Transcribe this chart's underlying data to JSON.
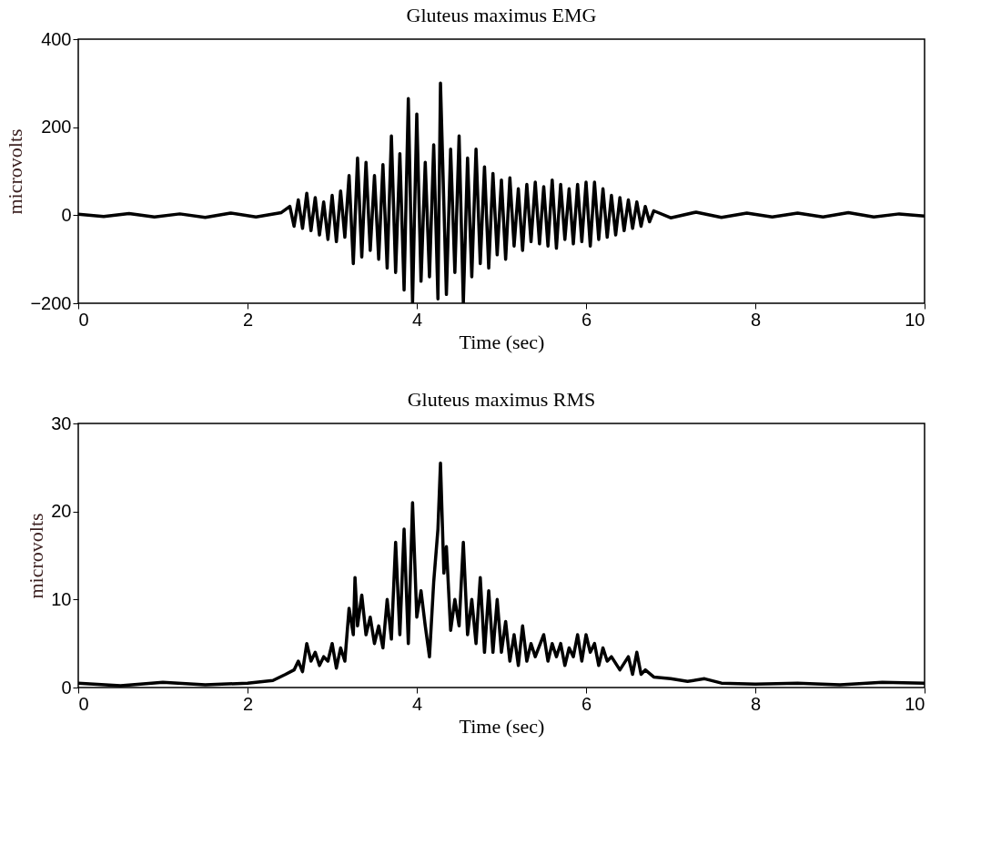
{
  "chart_data": [
    {
      "type": "line",
      "title": "Gluteus maximus EMG",
      "xlabel": "Time (sec)",
      "ylabel": "microvolts",
      "xlim": [
        0,
        10
      ],
      "xticks": [
        0,
        2,
        4,
        6,
        8,
        10
      ],
      "ylim": [
        -200,
        400
      ],
      "yticks": [
        -200,
        0,
        200,
        400
      ],
      "grid": false,
      "marker": "none",
      "line_style": "solid",
      "series": [
        {
          "color": "#000000",
          "x": [
            0,
            0.3,
            0.6,
            0.9,
            1.2,
            1.5,
            1.8,
            2.1,
            2.4,
            2.5,
            2.55,
            2.6,
            2.65,
            2.7,
            2.75,
            2.8,
            2.85,
            2.9,
            2.95,
            3.0,
            3.05,
            3.1,
            3.15,
            3.2,
            3.25,
            3.3,
            3.35,
            3.4,
            3.45,
            3.5,
            3.55,
            3.6,
            3.65,
            3.7,
            3.75,
            3.8,
            3.85,
            3.9,
            3.95,
            4.0,
            4.05,
            4.1,
            4.15,
            4.2,
            4.25,
            4.28,
            4.35,
            4.4,
            4.45,
            4.5,
            4.55,
            4.6,
            4.65,
            4.7,
            4.75,
            4.8,
            4.85,
            4.9,
            4.95,
            5.0,
            5.05,
            5.1,
            5.15,
            5.2,
            5.25,
            5.3,
            5.35,
            5.4,
            5.45,
            5.5,
            5.55,
            5.6,
            5.65,
            5.7,
            5.75,
            5.8,
            5.85,
            5.9,
            5.95,
            6.0,
            6.05,
            6.1,
            6.15,
            6.2,
            6.25,
            6.3,
            6.35,
            6.4,
            6.45,
            6.5,
            6.55,
            6.6,
            6.65,
            6.7,
            6.75,
            6.8,
            7.0,
            7.3,
            7.6,
            7.9,
            8.2,
            8.5,
            8.8,
            9.1,
            9.4,
            9.7,
            10
          ],
          "values": [
            2,
            -3,
            4,
            -4,
            3,
            -5,
            5,
            -4,
            6,
            20,
            -25,
            35,
            -30,
            50,
            -35,
            40,
            -45,
            30,
            -55,
            45,
            -60,
            55,
            -50,
            90,
            -110,
            130,
            -95,
            120,
            -80,
            90,
            -100,
            115,
            -120,
            180,
            -130,
            140,
            -170,
            265,
            -200,
            230,
            -150,
            120,
            -140,
            160,
            -190,
            300,
            -180,
            150,
            -130,
            180,
            -200,
            130,
            -140,
            150,
            -110,
            110,
            -120,
            95,
            -90,
            80,
            -100,
            85,
            -70,
            60,
            -80,
            70,
            -60,
            75,
            -65,
            65,
            -70,
            80,
            -75,
            70,
            -55,
            60,
            -65,
            70,
            -60,
            75,
            -70,
            75,
            -55,
            60,
            -50,
            45,
            -45,
            40,
            -35,
            35,
            -30,
            30,
            -25,
            20,
            -15,
            10,
            -6,
            7,
            -5,
            5,
            -4,
            5,
            -4,
            6,
            -4,
            3,
            -2
          ]
        }
      ]
    },
    {
      "type": "line",
      "title": "Gluteus maximus RMS",
      "xlabel": "Time (sec)",
      "ylabel": "microvolts",
      "xlim": [
        0,
        10
      ],
      "xticks": [
        0,
        2,
        4,
        6,
        8,
        10
      ],
      "ylim": [
        0,
        30
      ],
      "yticks": [
        0,
        10,
        20,
        30
      ],
      "grid": false,
      "marker": "none",
      "line_style": "solid",
      "series": [
        {
          "color": "#000000",
          "x": [
            0,
            0.5,
            1,
            1.5,
            2,
            2.3,
            2.45,
            2.55,
            2.6,
            2.65,
            2.7,
            2.75,
            2.8,
            2.85,
            2.9,
            2.95,
            3.0,
            3.05,
            3.1,
            3.15,
            3.2,
            3.25,
            3.27,
            3.3,
            3.35,
            3.4,
            3.45,
            3.5,
            3.55,
            3.6,
            3.65,
            3.7,
            3.75,
            3.8,
            3.85,
            3.9,
            3.95,
            4.0,
            4.05,
            4.1,
            4.15,
            4.2,
            4.25,
            4.28,
            4.32,
            4.35,
            4.4,
            4.45,
            4.5,
            4.55,
            4.6,
            4.65,
            4.7,
            4.75,
            4.8,
            4.85,
            4.9,
            4.95,
            5.0,
            5.05,
            5.1,
            5.15,
            5.2,
            5.25,
            5.3,
            5.35,
            5.4,
            5.5,
            5.55,
            5.6,
            5.65,
            5.7,
            5.75,
            5.8,
            5.85,
            5.9,
            5.95,
            6.0,
            6.05,
            6.1,
            6.15,
            6.2,
            6.25,
            6.3,
            6.4,
            6.5,
            6.55,
            6.6,
            6.65,
            6.7,
            6.8,
            7.0,
            7.2,
            7.4,
            7.6,
            8,
            8.5,
            9,
            9.5,
            10
          ],
          "values": [
            0.5,
            0.2,
            0.6,
            0.3,
            0.5,
            0.8,
            1.5,
            2,
            3,
            1.8,
            5,
            3,
            4,
            2.5,
            3.5,
            3,
            5,
            2.2,
            4.5,
            3,
            9,
            6,
            12.5,
            7,
            10.5,
            6,
            8,
            5,
            7,
            4.5,
            10,
            5.5,
            16.5,
            6,
            18,
            5,
            21,
            8,
            11,
            7,
            3.5,
            12,
            18,
            25.5,
            13,
            16,
            6.5,
            10,
            7,
            16.5,
            6,
            10,
            5,
            12.5,
            4,
            11,
            4,
            10,
            4,
            7.5,
            3,
            6,
            2.5,
            7,
            3,
            5,
            3.5,
            6,
            3,
            5,
            3.5,
            5,
            2.5,
            4.5,
            3.5,
            6,
            3,
            6,
            4,
            5,
            2.5,
            4.5,
            3,
            3.5,
            2,
            3.5,
            1.5,
            4,
            1.5,
            2,
            1.2,
            1,
            0.7,
            1,
            0.5,
            0.4,
            0.5,
            0.3,
            0.6,
            0.5
          ]
        }
      ]
    }
  ]
}
